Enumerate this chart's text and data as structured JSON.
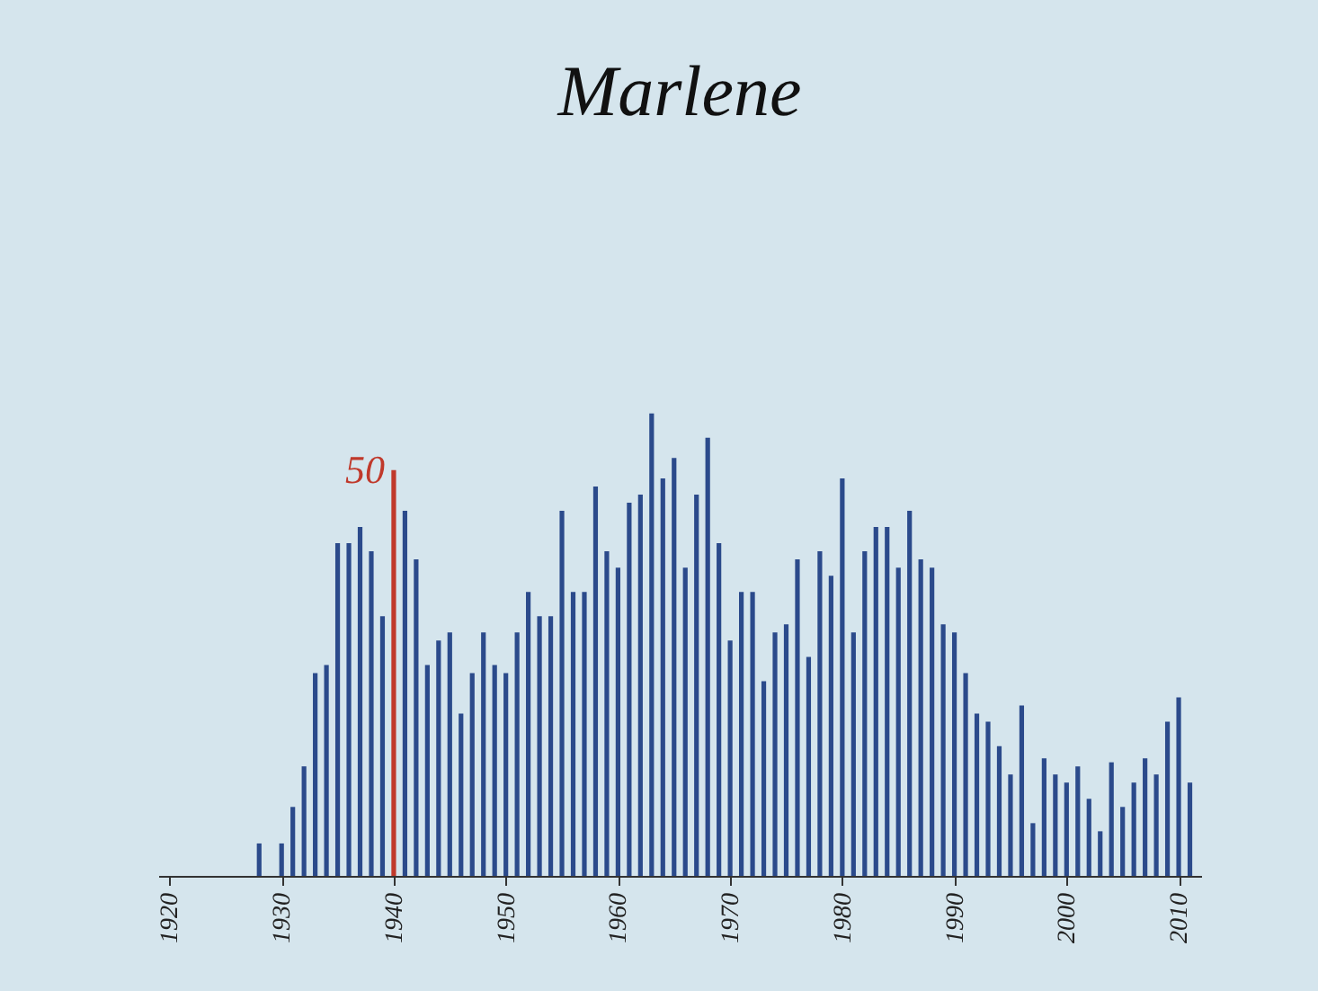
{
  "chart_data": {
    "type": "bar",
    "title": "Marlene",
    "x": [
      1928,
      1929,
      1930,
      1931,
      1932,
      1933,
      1934,
      1935,
      1936,
      1937,
      1938,
      1939,
      1940,
      1941,
      1942,
      1943,
      1944,
      1945,
      1946,
      1947,
      1948,
      1949,
      1950,
      1951,
      1952,
      1953,
      1954,
      1955,
      1956,
      1957,
      1958,
      1959,
      1960,
      1961,
      1962,
      1963,
      1964,
      1965,
      1966,
      1967,
      1968,
      1969,
      1970,
      1971,
      1972,
      1973,
      1974,
      1975,
      1976,
      1977,
      1978,
      1979,
      1980,
      1981,
      1982,
      1983,
      1984,
      1985,
      1986,
      1987,
      1988,
      1989,
      1990,
      1991,
      1992,
      1993,
      1994,
      1995,
      1996,
      1997,
      1998,
      1999,
      2000,
      2001,
      2002,
      2003,
      2004,
      2005,
      2006,
      2007,
      2008,
      2009,
      2010,
      2011
    ],
    "values": [
      4,
      null,
      4,
      8.5,
      13.5,
      25,
      26,
      41,
      41,
      43,
      40,
      32,
      50,
      45,
      39,
      26,
      29,
      30,
      20,
      25,
      30,
      26,
      25,
      30,
      35,
      32,
      32,
      45,
      35,
      35,
      48,
      40,
      38,
      46,
      47,
      57,
      49,
      51.5,
      38,
      47,
      54,
      41,
      29,
      35,
      35,
      24,
      30,
      31,
      39,
      27,
      40,
      37,
      49,
      30,
      40,
      43,
      43,
      38,
      45,
      39,
      38,
      31,
      30,
      25,
      20,
      19,
      16,
      12.5,
      21,
      6.5,
      14.5,
      12.5,
      11.5,
      13.5,
      9.5,
      5.5,
      14,
      8.5,
      11.5,
      14.5,
      12.5,
      19,
      22,
      11.5
    ],
    "colors": [
      "#2b4a8b",
      "#2b4a8b",
      "#2b4a8b",
      "#2b4a8b",
      "#2b4a8b",
      "#2b4a8b",
      "#2b4a8b",
      "#2b4a8b",
      "#2b4a8b",
      "#2b4a8b",
      "#2b4a8b",
      "#2b4a8b",
      "#c0392b",
      "#2b4a8b",
      "#2b4a8b",
      "#2b4a8b",
      "#2b4a8b",
      "#2b4a8b",
      "#2b4a8b",
      "#2b4a8b",
      "#2b4a8b",
      "#2b4a8b",
      "#2b4a8b",
      "#2b4a8b",
      "#2b4a8b",
      "#2b4a8b",
      "#2b4a8b",
      "#2b4a8b",
      "#2b4a8b",
      "#2b4a8b",
      "#2b4a8b",
      "#2b4a8b",
      "#2b4a8b",
      "#2b4a8b",
      "#2b4a8b",
      "#2b4a8b",
      "#2b4a8b",
      "#2b4a8b",
      "#2b4a8b",
      "#2b4a8b",
      "#2b4a8b",
      "#2b4a8b",
      "#2b4a8b",
      "#2b4a8b",
      "#2b4a8b",
      "#2b4a8b",
      "#2b4a8b",
      "#2b4a8b",
      "#2b4a8b",
      "#2b4a8b",
      "#2b4a8b",
      "#2b4a8b",
      "#2b4a8b",
      "#2b4a8b",
      "#2b4a8b",
      "#2b4a8b",
      "#2b4a8b",
      "#2b4a8b",
      "#2b4a8b",
      "#2b4a8b",
      "#2b4a8b",
      "#2b4a8b",
      "#2b4a8b",
      "#2b4a8b",
      "#2b4a8b",
      "#2b4a8b",
      "#2b4a8b",
      "#2b4a8b",
      "#2b4a8b",
      "#2b4a8b",
      "#2b4a8b",
      "#2b4a8b",
      "#2b4a8b",
      "#2b4a8b",
      "#2b4a8b",
      "#2b4a8b",
      "#2b4a8b",
      "#2b4a8b",
      "#2b4a8b",
      "#2b4a8b",
      "#2b4a8b",
      "#2b4a8b",
      "#2b4a8b",
      "#2b4a8b"
    ],
    "value_labels": [
      null,
      null,
      null,
      null,
      null,
      null,
      null,
      null,
      null,
      null,
      null,
      null,
      "50",
      null,
      null,
      null,
      null,
      null,
      null,
      null,
      null,
      null,
      null,
      null,
      null,
      null,
      null,
      null,
      null,
      null,
      null,
      null,
      null,
      null,
      null,
      null,
      null,
      null,
      null,
      null,
      null,
      null,
      null,
      null,
      null,
      null,
      null,
      null,
      null,
      null,
      null,
      null,
      null,
      null,
      null,
      null,
      null,
      null,
      null,
      null,
      null,
      null,
      null,
      null,
      null,
      null,
      null,
      null,
      null,
      null,
      null,
      null,
      null,
      null,
      null,
      null,
      null,
      null,
      null,
      null,
      null,
      null,
      null,
      null
    ],
    "relative": false,
    "xlim": [
      1919,
      2012
    ],
    "xticks": [
      1920,
      1930,
      1940,
      1950,
      1960,
      1970,
      1980,
      1990,
      2000,
      2010
    ],
    "grid": false
  }
}
